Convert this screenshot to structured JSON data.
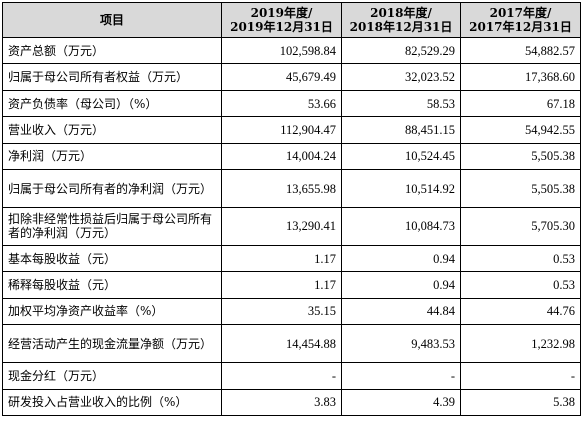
{
  "table": {
    "headers": [
      {
        "lines": [
          "项目"
        ]
      },
      {
        "lines": [
          "2019年度/",
          "2019年12月31日"
        ]
      },
      {
        "lines": [
          "2018年度/",
          "2018年12月31日"
        ]
      },
      {
        "lines": [
          "2017年度/",
          "2017年12月31日"
        ]
      }
    ],
    "rows": [
      {
        "label": "资产总额（万元）",
        "values": [
          "102,598.84",
          "82,529.29",
          "54,882.57"
        ]
      },
      {
        "label": "归属于母公司所有者权益（万元）",
        "values": [
          "45,679.49",
          "32,023.52",
          "17,368.60"
        ]
      },
      {
        "label": "资产负债率（母公司）（%）",
        "values": [
          "53.66",
          "58.53",
          "67.18"
        ]
      },
      {
        "label": "营业收入（万元）",
        "values": [
          "112,904.47",
          "88,451.15",
          "54,942.55"
        ]
      },
      {
        "label": "净利润（万元）",
        "values": [
          "14,004.24",
          "10,524.45",
          "5,505.38"
        ]
      },
      {
        "label": "归属于母公司所有者的净利润（万元）",
        "values": [
          "13,655.98",
          "10,514.92",
          "5,505.38"
        ]
      },
      {
        "label": "扣除非经常性损益后归属于母公司所有者的净利润（万元）",
        "values": [
          "13,290.41",
          "10,084.73",
          "5,705.30"
        ]
      },
      {
        "label": "基本每股收益（元）",
        "values": [
          "1.17",
          "0.94",
          "0.53"
        ]
      },
      {
        "label": "稀释每股收益（元）",
        "values": [
          "1.17",
          "0.94",
          "0.53"
        ]
      },
      {
        "label": "加权平均净资产收益率（%）",
        "values": [
          "35.15",
          "44.84",
          "44.76"
        ]
      },
      {
        "label": "经营活动产生的现金流量净额（万元）",
        "values": [
          "14,454.88",
          "9,483.53",
          "1,232.98"
        ]
      },
      {
        "label": "现金分红（万元）",
        "values": [
          "-",
          "-",
          "-"
        ]
      },
      {
        "label": "研发投入占营业收入的比例（%）",
        "values": [
          "3.83",
          "4.39",
          "5.38"
        ]
      }
    ]
  }
}
